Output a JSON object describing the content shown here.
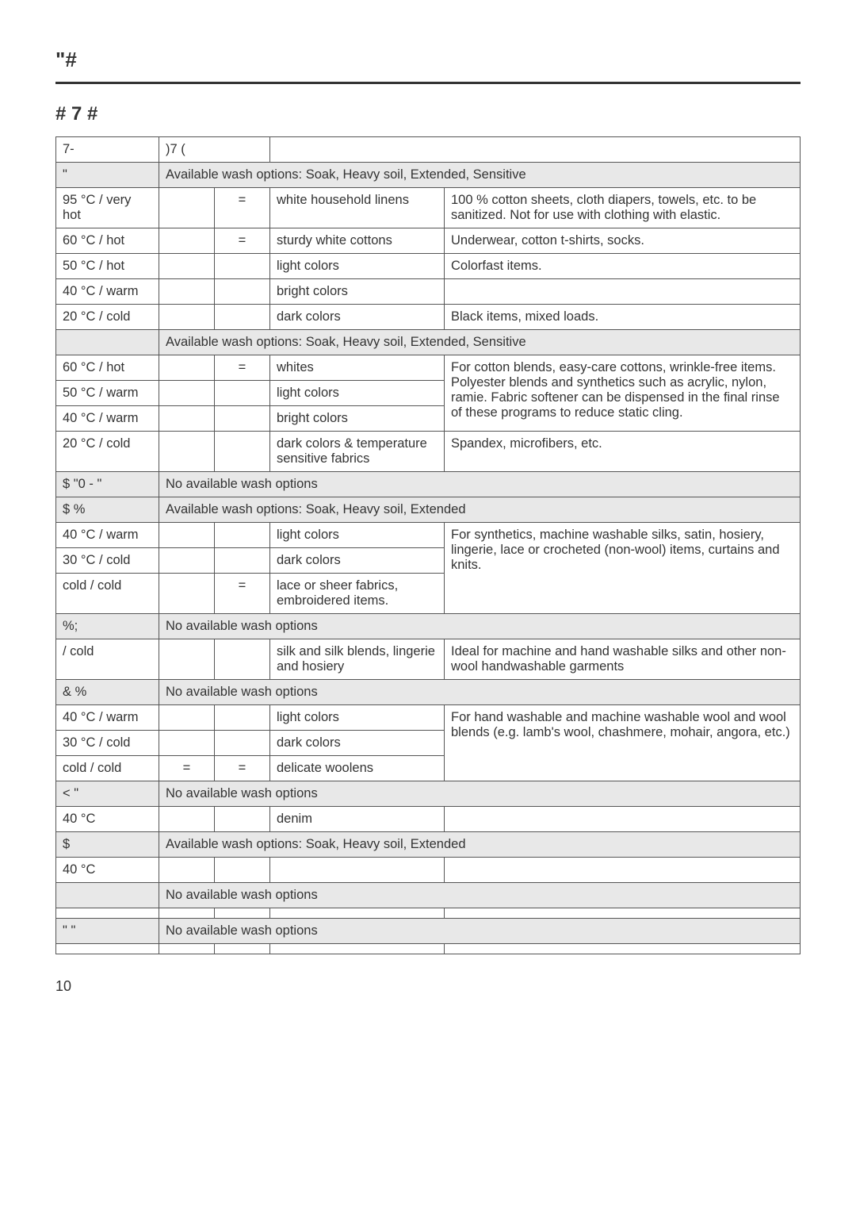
{
  "page_header": "\"#",
  "page_subheader": "#  7 #",
  "page_number": "10",
  "table": {
    "header_cells": [
      "7-",
      ")7",
      "(",
      "",
      ""
    ],
    "sections": [
      {
        "label": "\"",
        "options": "Available wash options: Soak, Heavy soil, Extended, Sensitive",
        "rows": [
          {
            "temp": "95 °C / very hot",
            "c2": "",
            "c3": "=",
            "fabric": "white household linens",
            "note": "100 % cotton sheets, cloth diapers, towels, etc. to be sanitized. Not for use with clothing with elastic.",
            "rowspan5": 1
          },
          {
            "temp": "60 °C / hot",
            "c2": "",
            "c3": "=",
            "fabric": "sturdy white cottons",
            "note": "Underwear, cotton t-shirts, socks.",
            "rowspan5": 1
          },
          {
            "temp": "50 °C / hot",
            "c2": "",
            "c3": "",
            "fabric": "light colors",
            "note": "Colorfast items.",
            "rowspan5": 1
          },
          {
            "temp": "40 °C / warm",
            "c2": "",
            "c3": "",
            "fabric": "bright colors",
            "note": "",
            "rowspan5": 1
          },
          {
            "temp": "20 °C / cold",
            "c2": "",
            "c3": "",
            "fabric": "dark colors",
            "note": "Black items, mixed loads.",
            "rowspan5": 1
          }
        ]
      },
      {
        "label": "",
        "options": "Available wash options: Soak, Heavy soil, Extended, Sensitive",
        "rows": [
          {
            "temp": "60 °C / hot",
            "c2": "",
            "c3": "=",
            "fabric": "whites",
            "note": "For cotton blends, easy-care cottons, wrinkle-free items. Polyester blends and synthetics such as acrylic, nylon, ramie.\nFabric softener can be dispensed in the final rinse of these programs to reduce static cling.",
            "rowspan5": 3
          },
          {
            "temp": "50 °C / warm",
            "c2": "",
            "c3": "",
            "fabric": "light colors"
          },
          {
            "temp": "40 °C / warm",
            "c2": "",
            "c3": "",
            "fabric": "bright colors"
          },
          {
            "temp": "20 °C / cold",
            "c2": "",
            "c3": "",
            "fabric": "dark colors & temperature sensitive fabrics",
            "note": "Spandex, microfibers, etc.",
            "rowspan5": 1
          }
        ]
      },
      {
        "label": "$  \"0 - \"",
        "options": "No available wash options",
        "rows": []
      },
      {
        "label": "$ %",
        "options": "Available wash options: Soak, Heavy soil, Extended",
        "rows": [
          {
            "temp": "40 °C / warm",
            "c2": "",
            "c3": "",
            "fabric": "light colors",
            "note": "For synthetics, machine washable silks, satin, hosiery, lingerie, lace or crocheted (non-wool) items, curtains and knits.",
            "rowspan5": 3
          },
          {
            "temp": "30 °C / cold",
            "c2": "",
            "c3": "",
            "fabric": "dark colors"
          },
          {
            "temp": "cold / cold",
            "c2": "",
            "c3": "=",
            "fabric": "lace or sheer fabrics, embroidered items."
          }
        ]
      },
      {
        "label": " %;",
        "options": "No available wash options",
        "rows": [
          {
            "temp": "    / cold",
            "c2": "",
            "c3": "",
            "fabric": "silk and silk blends, lingerie and hosiery",
            "note": "Ideal for machine and hand washable silks and other non-wool handwashable garments",
            "rowspan5": 1
          }
        ]
      },
      {
        "label": "&  %",
        "options": "No available wash options",
        "rows": [
          {
            "temp": "40 °C / warm",
            "c2": "",
            "c3": "",
            "fabric": "light colors",
            "note": "For hand washable and machine washable wool and wool blends (e.g. lamb's wool, chashmere, mohair, angora, etc.)",
            "rowspan5": 3
          },
          {
            "temp": "30 °C / cold",
            "c2": "",
            "c3": "",
            "fabric": "dark colors"
          },
          {
            "temp": "cold / cold",
            "c2": "=",
            "c3": "=",
            "fabric": "delicate woolens"
          }
        ]
      },
      {
        "label": "<  \"",
        "options": "No available wash options",
        "rows": [
          {
            "temp": "40 °C",
            "c2": "",
            "c3": "",
            "fabric": "denim",
            "note": "",
            "rowspan5": 1
          }
        ]
      },
      {
        "label": "$",
        "options": "Available wash options: Soak, Heavy soil, Extended",
        "rows": [
          {
            "temp": "40 °C",
            "c2": "",
            "c3": "",
            "fabric": "",
            "note": "",
            "rowspan5": 1
          }
        ]
      },
      {
        "label": "",
        "options": "No available wash options",
        "rows": [
          {
            "temp": "",
            "c2": "",
            "c3": "",
            "fabric": "",
            "note": "",
            "rowspan5": 1
          }
        ]
      },
      {
        "label": "\"    \"",
        "options": "No available wash options",
        "rows": [
          {
            "temp": "",
            "c2": "",
            "c3": "",
            "fabric": "",
            "note": "",
            "rowspan5": 1
          }
        ]
      }
    ]
  }
}
